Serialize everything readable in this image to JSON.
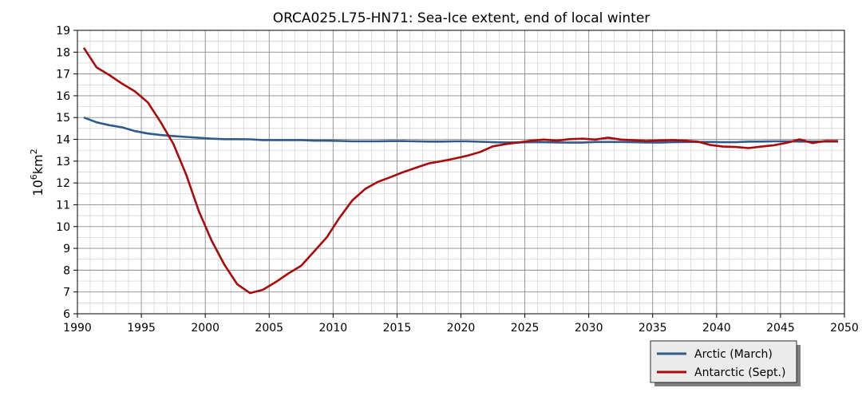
{
  "chart_data": {
    "type": "line",
    "title": "ORCA025.L75-HN71: Sea-Ice extent, end of local winter",
    "xlabel": "",
    "ylabel": "10⁶km²",
    "ylabel_base": "10",
    "ylabel_exp": "6",
    "ylabel_unit": "km",
    "ylabel_unit_exp": "2",
    "xlim": [
      1990,
      2050
    ],
    "ylim": [
      6,
      19
    ],
    "xticks": [
      1990,
      1995,
      2000,
      2005,
      2010,
      2015,
      2020,
      2025,
      2030,
      2035,
      2040,
      2045,
      2050
    ],
    "yticks": [
      6,
      7,
      8,
      9,
      10,
      11,
      12,
      13,
      14,
      15,
      16,
      17,
      18,
      19
    ],
    "grid": true,
    "legend_placement": "bottom-right outside",
    "series": [
      {
        "name": "Arctic (March)",
        "color": "#2f5a8a",
        "x": [
          1990.5,
          1991.5,
          1992.5,
          1993.5,
          1994.5,
          1995.5,
          1996.5,
          1997.5,
          1998.5,
          1999.5,
          2000.5,
          2001.5,
          2002.5,
          2003.5,
          2004.5,
          2005.5,
          2006.5,
          2007.5,
          2008.5,
          2009.5,
          2010.5,
          2011.5,
          2012.5,
          2013.5,
          2014.5,
          2015.5,
          2016.5,
          2017.5,
          2018.5,
          2019.5,
          2020.5,
          2021.5,
          2022.5,
          2023.5,
          2024.5,
          2025.5,
          2026.5,
          2027.5,
          2028.5,
          2029.5,
          2030.5,
          2031.5,
          2032.5,
          2033.5,
          2034.5,
          2035.5,
          2036.5,
          2037.5,
          2038.5,
          2039.5,
          2040.5,
          2041.5,
          2042.5,
          2043.5,
          2044.5,
          2045.5,
          2046.5,
          2047.5,
          2048.5,
          2049.5
        ],
        "values": [
          15.0,
          14.78,
          14.65,
          14.55,
          14.38,
          14.27,
          14.2,
          14.15,
          14.11,
          14.07,
          14.03,
          14.01,
          14.01,
          14.0,
          13.97,
          13.97,
          13.97,
          13.97,
          13.94,
          13.94,
          13.93,
          13.91,
          13.91,
          13.91,
          13.92,
          13.92,
          13.91,
          13.9,
          13.9,
          13.91,
          13.91,
          13.89,
          13.87,
          13.86,
          13.86,
          13.87,
          13.87,
          13.86,
          13.85,
          13.85,
          13.88,
          13.88,
          13.88,
          13.87,
          13.86,
          13.85,
          13.87,
          13.88,
          13.88,
          13.88,
          13.87,
          13.87,
          13.9,
          13.9,
          13.91,
          13.91,
          13.9,
          13.9,
          13.9,
          13.9
        ]
      },
      {
        "name": "Antarctic (Sept.)",
        "color": "#aa0a0a",
        "x": [
          1990.5,
          1991.5,
          1992.5,
          1993.5,
          1994.5,
          1995.5,
          1996.5,
          1997.5,
          1998.5,
          1999.5,
          2000.5,
          2001.5,
          2002.5,
          2003.5,
          2004.5,
          2005.5,
          2006.5,
          2007.5,
          2008.5,
          2009.5,
          2010.5,
          2011.5,
          2012.5,
          2013.5,
          2014.5,
          2015.5,
          2016.5,
          2017.5,
          2018.5,
          2019.5,
          2020.5,
          2021.5,
          2022.5,
          2023.5,
          2024.5,
          2025.5,
          2026.5,
          2027.5,
          2028.5,
          2029.5,
          2030.5,
          2031.5,
          2032.5,
          2033.5,
          2034.5,
          2035.5,
          2036.5,
          2037.5,
          2038.5,
          2039.5,
          2040.5,
          2041.5,
          2042.5,
          2043.5,
          2044.5,
          2045.5,
          2046.5,
          2047.5,
          2048.5,
          2049.5
        ],
        "values": [
          18.2,
          17.3,
          16.95,
          16.55,
          16.2,
          15.7,
          14.8,
          13.8,
          12.4,
          10.7,
          9.35,
          8.25,
          7.35,
          6.95,
          7.1,
          7.45,
          7.85,
          8.2,
          8.85,
          9.5,
          10.4,
          11.2,
          11.72,
          12.05,
          12.27,
          12.5,
          12.7,
          12.9,
          13.0,
          13.12,
          13.25,
          13.42,
          13.68,
          13.78,
          13.86,
          13.94,
          13.99,
          13.94,
          14.01,
          14.03,
          13.99,
          14.08,
          13.99,
          13.96,
          13.93,
          13.95,
          13.97,
          13.94,
          13.9,
          13.74,
          13.67,
          13.65,
          13.6,
          13.67,
          13.73,
          13.84,
          14.0,
          13.83,
          13.93,
          13.92
        ]
      }
    ]
  }
}
